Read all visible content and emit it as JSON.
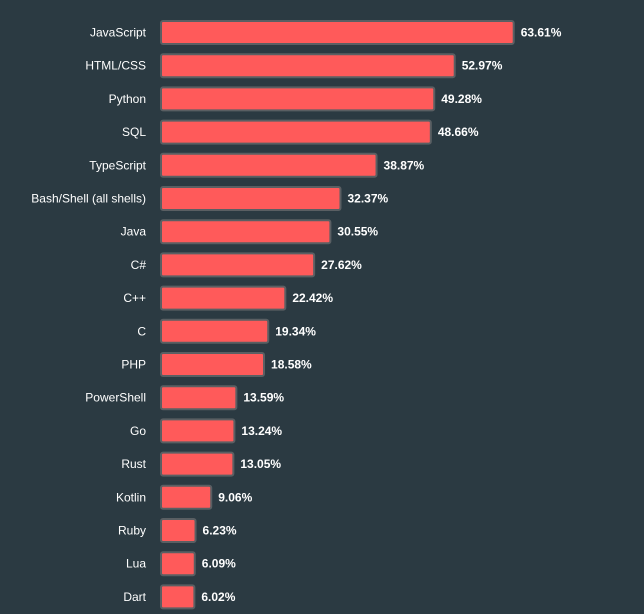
{
  "colors": {
    "background": "#2b3a42",
    "bar": "#ff5a5a",
    "bar_border": "#5a5f63",
    "text": "#ffffff"
  },
  "chart_data": {
    "type": "bar",
    "orientation": "horizontal",
    "title": "",
    "xlabel": "",
    "ylabel": "",
    "value_suffix": "%",
    "grid": false,
    "legend": "none",
    "categories": [
      "JavaScript",
      "HTML/CSS",
      "Python",
      "SQL",
      "TypeScript",
      "Bash/Shell (all shells)",
      "Java",
      "C#",
      "C++",
      "C",
      "PHP",
      "PowerShell",
      "Go",
      "Rust",
      "Kotlin",
      "Ruby",
      "Lua",
      "Dart"
    ],
    "values": [
      63.61,
      52.97,
      49.28,
      48.66,
      38.87,
      32.37,
      30.55,
      27.62,
      22.42,
      19.34,
      18.58,
      13.59,
      13.24,
      13.05,
      9.06,
      6.23,
      6.09,
      6.02
    ],
    "value_labels": [
      "63.61%",
      "52.97%",
      "49.28%",
      "48.66%",
      "38.87%",
      "32.37%",
      "30.55%",
      "27.62%",
      "22.42%",
      "19.34%",
      "18.58%",
      "13.59%",
      "13.24%",
      "13.05%",
      "9.06%",
      "6.23%",
      "6.09%",
      "6.02%"
    ]
  }
}
